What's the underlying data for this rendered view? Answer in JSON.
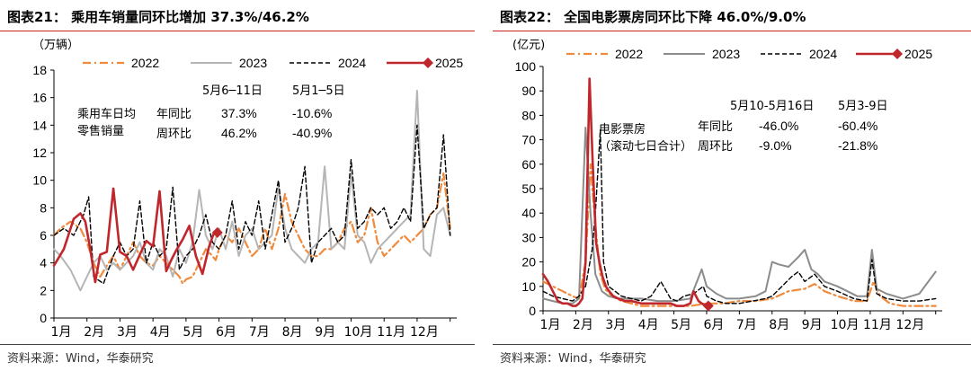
{
  "panels": [
    {
      "title": "图表21：  乘用车销量同环比增加 37.3%/46.2%",
      "source": "资料来源：Wind，华泰研究",
      "unit_label": "（万辆）",
      "annotation_left": [
        "乘用车日均",
        "零售销量"
      ],
      "row_labels": [
        "年同比",
        "周环比"
      ],
      "col_headers": [
        "5月6─11日",
        "5月1─5日"
      ],
      "col_values": [
        [
          "37.3%",
          "46.2%"
        ],
        [
          "-10.6%",
          "-40.9%"
        ]
      ]
    },
    {
      "title": "图表22：  全国电影票房同环比下降 46.0%/9.0%",
      "source": "资料来源：Wind，华泰研究",
      "unit_label": "(亿元)",
      "annotation_left": [
        "电影票房",
        "（滚动七日合计）"
      ],
      "row_labels": [
        "年同比",
        "周环比"
      ],
      "col_headers": [
        "5月10-5月16日",
        "5月3-9日"
      ],
      "col_values": [
        [
          "-46.0%",
          "-9.0%"
        ],
        [
          "-60.4%",
          "-21.8%"
        ]
      ]
    }
  ],
  "colors": {
    "2022": "#f08a3c",
    "2023": "#b5b5b5",
    "2023_right": "#8c8c8c",
    "2024": "#000000",
    "2025": "#c0272d",
    "title_rule": "#cc2222"
  },
  "chart_data": [
    {
      "type": "line",
      "title": "乘用车销量同环比增加 37.3%/46.2%",
      "ylabel": "（万辆）",
      "ylim": [
        0,
        18
      ],
      "yticks": [
        0,
        2,
        4,
        6,
        8,
        10,
        12,
        14,
        16,
        18
      ],
      "xlim": [
        0,
        12.2
      ],
      "xtick_labels": [
        "1月",
        "2月",
        "3月",
        "4月",
        "5月",
        "6月",
        "7月",
        "8月",
        "9月",
        "10月",
        "11月",
        "12月"
      ],
      "legend": [
        "2022",
        "2023",
        "2024",
        "2025"
      ],
      "legend_position": "top",
      "series": [
        {
          "name": "2022",
          "style": "dashdot",
          "x": [
            0.0,
            0.2,
            0.5,
            0.8,
            1.0,
            1.2,
            1.4,
            1.6,
            1.8,
            2.0,
            2.2,
            2.4,
            2.6,
            2.8,
            3.0,
            3.2,
            3.4,
            3.6,
            3.8,
            3.9,
            4.0,
            4.2,
            4.4,
            4.6,
            4.8,
            4.9,
            5.0,
            5.2,
            5.4,
            5.6,
            5.8,
            6.0,
            6.2,
            6.4,
            6.6,
            6.8,
            7.0,
            7.2,
            7.4,
            7.6,
            7.8,
            8.0,
            8.2,
            8.4,
            8.6,
            8.8,
            9.0,
            9.2,
            9.4,
            9.6,
            9.8,
            10.0,
            10.2,
            10.4,
            10.6,
            10.8,
            11.0,
            11.2,
            11.4,
            11.6,
            11.8,
            12.0
          ],
          "y": [
            6.0,
            6.5,
            7.0,
            6.5,
            5.5,
            4.0,
            3.0,
            3.8,
            4.5,
            3.5,
            4.5,
            5.5,
            4.5,
            4.0,
            3.8,
            4.5,
            4.0,
            3.5,
            3.0,
            2.5,
            2.8,
            3.0,
            4.0,
            5.0,
            4.5,
            4.2,
            5.0,
            6.0,
            5.5,
            6.5,
            5.5,
            4.5,
            5.0,
            6.5,
            5.0,
            6.5,
            9.0,
            7.0,
            6.0,
            5.0,
            4.5,
            4.5,
            5.0,
            5.0,
            5.5,
            6.5,
            7.0,
            5.5,
            6.0,
            8.0,
            5.5,
            4.5,
            5.0,
            5.5,
            6.0,
            5.5,
            6.0,
            6.5,
            7.5,
            8.0,
            10.5,
            6.5
          ]
        },
        {
          "name": "2023",
          "style": "solid",
          "x": [
            0.0,
            0.2,
            0.5,
            0.8,
            1.0,
            1.2,
            1.4,
            1.6,
            1.8,
            2.0,
            2.2,
            2.4,
            2.6,
            2.8,
            3.0,
            3.2,
            3.4,
            3.6,
            3.8,
            4.0,
            4.2,
            4.4,
            4.6,
            4.8,
            5.0,
            5.2,
            5.4,
            5.6,
            5.8,
            6.0,
            6.2,
            6.4,
            6.6,
            6.8,
            7.0,
            7.2,
            7.4,
            7.6,
            7.8,
            8.0,
            8.2,
            8.4,
            8.6,
            8.8,
            9.0,
            9.2,
            9.4,
            9.6,
            9.8,
            10.0,
            10.2,
            10.4,
            10.6,
            10.8,
            11.0,
            11.2,
            11.4,
            11.6,
            11.8,
            12.0
          ],
          "y": [
            5.0,
            4.5,
            3.5,
            2.0,
            3.0,
            4.0,
            4.5,
            3.5,
            4.0,
            3.5,
            4.0,
            4.5,
            5.5,
            4.0,
            3.5,
            5.0,
            4.5,
            3.0,
            5.0,
            4.0,
            5.5,
            9.3,
            6.0,
            5.0,
            6.5,
            5.0,
            7.0,
            4.5,
            6.0,
            6.5,
            5.0,
            5.5,
            6.0,
            9.5,
            6.5,
            5.0,
            4.5,
            4.0,
            5.0,
            5.5,
            11.0,
            5.0,
            5.5,
            5.0,
            10.5,
            6.0,
            5.5,
            4.0,
            5.0,
            5.5,
            6.0,
            6.5,
            7.0,
            7.5,
            16.5,
            5.0,
            4.5,
            7.5,
            8.0,
            6.0
          ]
        },
        {
          "name": "2024",
          "style": "dashed",
          "x": [
            0.0,
            0.3,
            0.6,
            0.9,
            1.05,
            1.2,
            1.5,
            1.8,
            2.0,
            2.2,
            2.4,
            2.6,
            2.8,
            3.0,
            3.2,
            3.4,
            3.6,
            3.8,
            4.0,
            4.2,
            4.4,
            4.6,
            4.8,
            5.0,
            5.2,
            5.4,
            5.6,
            5.8,
            6.0,
            6.2,
            6.4,
            6.6,
            6.8,
            7.0,
            7.2,
            7.4,
            7.6,
            7.8,
            8.0,
            8.2,
            8.4,
            8.6,
            8.8,
            9.0,
            9.2,
            9.4,
            9.6,
            9.8,
            10.0,
            10.2,
            10.4,
            10.6,
            10.8,
            11.0,
            11.2,
            11.4,
            11.6,
            11.8,
            12.0
          ],
          "y": [
            6.0,
            6.5,
            6.0,
            7.5,
            8.8,
            3.0,
            2.5,
            4.5,
            5.5,
            4.5,
            5.0,
            8.5,
            4.0,
            5.5,
            4.5,
            5.0,
            9.5,
            3.5,
            4.5,
            5.0,
            6.0,
            7.5,
            5.5,
            5.0,
            6.0,
            8.5,
            5.0,
            7.0,
            6.0,
            8.5,
            5.0,
            7.5,
            10.0,
            5.5,
            6.5,
            8.0,
            11.0,
            4.0,
            5.5,
            6.0,
            6.5,
            5.5,
            6.0,
            11.5,
            6.5,
            7.0,
            8.0,
            7.5,
            8.0,
            6.5,
            7.0,
            8.0,
            7.0,
            14.0,
            6.5,
            7.5,
            8.0,
            13.3,
            6.0
          ]
        },
        {
          "name": "2025",
          "style": "solid-bold",
          "x": [
            0.0,
            0.3,
            0.6,
            0.8,
            0.95,
            1.1,
            1.25,
            1.4,
            1.6,
            1.8,
            2.0,
            2.2,
            2.4,
            2.6,
            2.8,
            3.0,
            3.2,
            3.4,
            3.55,
            3.7,
            3.9,
            4.1,
            4.3,
            4.5,
            4.7,
            4.85,
            4.95
          ],
          "y": [
            3.8,
            5.0,
            7.2,
            7.6,
            7.0,
            5.0,
            2.6,
            4.6,
            4.8,
            9.4,
            4.8,
            4.5,
            3.5,
            4.6,
            5.6,
            5.2,
            9.2,
            3.4,
            4.2,
            4.9,
            5.7,
            6.7,
            4.5,
            3.2,
            5.2,
            6.2,
            6.2
          ],
          "end_marker": "diamond"
        }
      ]
    },
    {
      "type": "line",
      "title": "全国电影票房同环比下降 46.0%/9.0%",
      "ylabel": "(亿元)",
      "ylim": [
        0,
        100
      ],
      "yticks": [
        0,
        10,
        20,
        30,
        40,
        50,
        60,
        70,
        80,
        90,
        100
      ],
      "xlim": [
        0,
        12.2
      ],
      "xtick_labels": [
        "1月",
        "2月",
        "3月",
        "4月",
        "5月",
        "6月",
        "7月",
        "8月",
        "9月",
        "10月",
        "11月",
        "12月"
      ],
      "legend": [
        "2022",
        "2023",
        "2024",
        "2025"
      ],
      "legend_position": "top",
      "series": [
        {
          "name": "2022",
          "style": "dashdot",
          "x": [
            0.0,
            0.3,
            0.6,
            0.9,
            1.1,
            1.3,
            1.45,
            1.6,
            1.75,
            1.9,
            2.1,
            2.4,
            2.7,
            3.0,
            3.5,
            4.0,
            4.5,
            5.0,
            5.5,
            6.0,
            6.5,
            7.0,
            7.5,
            8.0,
            8.3,
            8.6,
            9.0,
            9.5,
            9.9,
            10.1,
            10.3,
            10.6,
            11.0,
            11.5,
            12.0
          ],
          "y": [
            12,
            10,
            8,
            6,
            5,
            20,
            60,
            35,
            15,
            9,
            6,
            4,
            3,
            2,
            2,
            2,
            2,
            3,
            3,
            4,
            4,
            5,
            8,
            9,
            11,
            8,
            6,
            4,
            4,
            12,
            6,
            3,
            2,
            2,
            2
          ]
        },
        {
          "name": "2023",
          "style": "solid",
          "x": [
            0.0,
            0.3,
            0.6,
            0.9,
            1.1,
            1.3,
            1.45,
            1.6,
            1.8,
            2.0,
            2.3,
            2.6,
            3.0,
            3.5,
            4.0,
            4.5,
            4.85,
            5.0,
            5.3,
            5.6,
            6.0,
            6.5,
            6.8,
            7.0,
            7.2,
            7.5,
            7.8,
            8.0,
            8.2,
            8.4,
            8.6,
            8.8,
            9.0,
            9.3,
            9.6,
            9.9,
            10.05,
            10.2,
            10.5,
            11.0,
            11.5,
            12.0
          ],
          "y": [
            5,
            4,
            3,
            3,
            5,
            75,
            40,
            15,
            8,
            6,
            5,
            5,
            5,
            4,
            4,
            5,
            17,
            10,
            7,
            5,
            5,
            6,
            8,
            20,
            19,
            18,
            22,
            25,
            17,
            15,
            12,
            11,
            10,
            8,
            6,
            6,
            25,
            9,
            7,
            5,
            7,
            16
          ]
        },
        {
          "name": "2024",
          "style": "dashed",
          "x": [
            0.0,
            0.3,
            0.6,
            0.9,
            1.1,
            1.3,
            1.5,
            1.6,
            1.75,
            1.85,
            2.0,
            2.2,
            2.4,
            2.7,
            3.0,
            3.3,
            3.6,
            3.9,
            4.1,
            4.3,
            4.6,
            4.9,
            5.0,
            5.3,
            5.6,
            6.0,
            6.4,
            6.8,
            7.0,
            7.3,
            7.6,
            7.8,
            8.0,
            8.3,
            8.6,
            9.0,
            9.5,
            9.9,
            10.05,
            10.2,
            10.5,
            11.0,
            11.5,
            12.0
          ],
          "y": [
            8,
            6,
            5,
            4,
            6,
            10,
            25,
            40,
            74,
            20,
            10,
            8,
            6,
            5,
            4,
            6,
            12,
            5,
            4,
            6,
            7,
            10,
            6,
            4,
            3,
            3,
            4,
            5,
            6,
            10,
            14,
            16,
            12,
            15,
            10,
            8,
            5,
            4,
            21,
            7,
            5,
            4,
            4,
            5
          ]
        },
        {
          "name": "2025",
          "style": "solid-bold",
          "x": [
            0.0,
            0.15,
            0.3,
            0.45,
            0.6,
            0.75,
            0.9,
            1.0,
            1.1,
            1.2,
            1.3,
            1.42,
            1.52,
            1.62,
            1.72,
            1.82,
            1.92,
            2.02,
            2.15,
            2.3,
            2.5,
            2.7,
            3.0,
            3.3,
            3.6,
            3.9,
            4.1,
            4.3,
            4.5,
            4.6,
            4.75,
            4.85,
            5.0,
            5.05
          ],
          "y": [
            15,
            12,
            8,
            4,
            3,
            3,
            2,
            2,
            3,
            5,
            20,
            95,
            60,
            28,
            20,
            14,
            10,
            8,
            6,
            5,
            4,
            4,
            3,
            3,
            3,
            3,
            2,
            2,
            3,
            8,
            4,
            3,
            2,
            2
          ],
          "end_marker": "diamond"
        }
      ]
    }
  ]
}
